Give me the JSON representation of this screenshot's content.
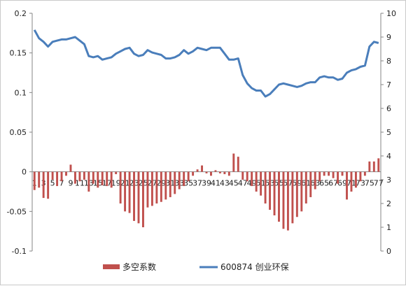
{
  "chart_data": {
    "type": "bar",
    "categories": [
      "1",
      "2",
      "3",
      "4",
      "5",
      "6",
      "7",
      "8",
      "9",
      "10",
      "11",
      "12",
      "13",
      "14",
      "15",
      "16",
      "17",
      "18",
      "19",
      "20",
      "21",
      "22",
      "23",
      "24",
      "25",
      "26",
      "27",
      "28",
      "29",
      "30",
      "31",
      "32",
      "33",
      "34",
      "35",
      "36",
      "37",
      "38",
      "39",
      "40",
      "41",
      "42",
      "43",
      "44",
      "45",
      "46",
      "47",
      "48",
      "49",
      "50",
      "51",
      "52",
      "53",
      "54",
      "55",
      "56",
      "57",
      "58",
      "59",
      "60",
      "61",
      "62",
      "63",
      "64",
      "65",
      "66",
      "67",
      "68",
      "69",
      "70",
      "71",
      "72",
      "73",
      "74",
      "75",
      "76",
      "77"
    ],
    "category_tick_labels": [
      "1",
      "3",
      "5",
      "7",
      "9",
      "11",
      "13",
      "15",
      "17",
      "19",
      "21",
      "23",
      "25",
      "27",
      "29",
      "31",
      "33",
      "35",
      "37",
      "39",
      "41",
      "43",
      "45",
      "47",
      "49",
      "51",
      "53",
      "55",
      "57",
      "59",
      "61",
      "63",
      "65",
      "67",
      "69",
      "71",
      "73",
      "75",
      "77"
    ],
    "series": [
      {
        "name": "多空系数",
        "chart_type": "bar",
        "axis": "left",
        "color": "#c0504d",
        "values": [
          -0.023,
          -0.02,
          -0.033,
          -0.034,
          -0.01,
          -0.018,
          -0.012,
          -0.005,
          0.009,
          -0.015,
          -0.012,
          -0.01,
          -0.025,
          -0.015,
          -0.02,
          -0.017,
          -0.018,
          -0.02,
          -0.003,
          -0.04,
          -0.05,
          -0.052,
          -0.062,
          -0.065,
          -0.07,
          -0.045,
          -0.043,
          -0.04,
          -0.038,
          -0.035,
          -0.032,
          -0.028,
          -0.022,
          -0.018,
          -0.012,
          -0.005,
          0.003,
          0.008,
          -0.002,
          -0.005,
          0.002,
          -0.002,
          -0.003,
          -0.005,
          0.023,
          0.019,
          -0.01,
          -0.012,
          -0.018,
          -0.025,
          -0.03,
          -0.04,
          -0.048,
          -0.055,
          -0.063,
          -0.072,
          -0.074,
          -0.065,
          -0.057,
          -0.05,
          -0.04,
          -0.032,
          -0.022,
          -0.012,
          -0.005,
          -0.005,
          -0.008,
          -0.015,
          -0.005,
          -0.035,
          -0.025,
          -0.02,
          -0.012,
          -0.005,
          0.013,
          0.013,
          0.017
        ]
      },
      {
        "name": "600874 创业环保",
        "chart_type": "line",
        "axis": "right",
        "color": "#4a7ebb",
        "values": [
          9.3,
          8.95,
          8.8,
          8.6,
          8.8,
          8.85,
          8.9,
          8.9,
          8.95,
          9.0,
          8.85,
          8.7,
          8.2,
          8.15,
          8.2,
          8.05,
          8.1,
          8.15,
          8.3,
          8.4,
          8.5,
          8.55,
          8.3,
          8.2,
          8.25,
          8.45,
          8.35,
          8.3,
          8.25,
          8.1,
          8.1,
          8.15,
          8.25,
          8.45,
          8.3,
          8.4,
          8.55,
          8.5,
          8.45,
          8.55,
          8.55,
          8.55,
          8.3,
          8.05,
          8.05,
          8.1,
          7.4,
          7.05,
          6.85,
          6.75,
          6.75,
          6.5,
          6.6,
          6.8,
          7.0,
          7.05,
          7.0,
          6.95,
          6.9,
          6.95,
          7.05,
          7.1,
          7.1,
          7.3,
          7.35,
          7.3,
          7.3,
          7.2,
          7.25,
          7.5,
          7.6,
          7.65,
          7.75,
          7.8,
          8.6,
          8.8,
          8.75
        ]
      }
    ],
    "y_left": {
      "min": -0.1,
      "max": 0.2,
      "ticks": [
        "-0.1",
        "-0.05",
        "0",
        "0.05",
        "0.1",
        "0.15",
        "0.2"
      ],
      "tick_values": [
        -0.1,
        -0.05,
        0,
        0.05,
        0.1,
        0.15,
        0.2
      ]
    },
    "y_right": {
      "min": 0,
      "max": 10,
      "ticks": [
        "0",
        "1",
        "2",
        "3",
        "4",
        "5",
        "6",
        "7",
        "8",
        "9",
        "10"
      ],
      "tick_values": [
        0,
        1,
        2,
        3,
        4,
        5,
        6,
        7,
        8,
        9,
        10
      ]
    },
    "grid": false,
    "legend_position": "bottom"
  }
}
